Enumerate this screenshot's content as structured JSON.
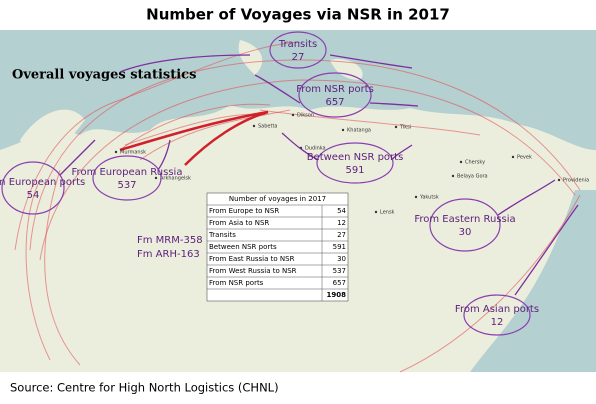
{
  "title": "Number of Voyages via NSR in 2017",
  "subtitle": "Overall voyages statistics",
  "annotations": [
    {
      "label": "Transits",
      "value": 27
    },
    {
      "label": "From NSR ports",
      "value": 657
    },
    {
      "label": "Between NSR ports",
      "value": 591
    },
    {
      "label": "From European ports",
      "value": 54
    },
    {
      "label": "From European Russia",
      "value": 537
    },
    {
      "label": "From Eastern Russia",
      "value": 30
    },
    {
      "label": "From Asian ports",
      "value": 12
    }
  ],
  "sub_notes": [
    "Fm MRM-358",
    "Fm ARH-163"
  ],
  "table": {
    "header": "Number of voyages in 2017",
    "rows": [
      [
        "From Europe to NSR",
        54
      ],
      [
        "From Asia to NSR",
        12
      ],
      [
        "Transits",
        27
      ],
      [
        "Between NSR ports",
        591
      ],
      [
        "From East Russia to NSR",
        30
      ],
      [
        "From West Russia to NSR",
        537
      ],
      [
        "From NSR ports",
        657
      ]
    ],
    "total": 1908
  },
  "places": [
    "Murmansk",
    "Arkhangelsk",
    "Sabetta",
    "Dikson",
    "Dudinka",
    "Khatanga",
    "Tiksi",
    "Pevek",
    "Providenia",
    "Yakutsk",
    "Lensk",
    "Chersky",
    "Belaya Gora"
  ],
  "source": "Source: Centre for High North Logistics (CHNL)"
}
